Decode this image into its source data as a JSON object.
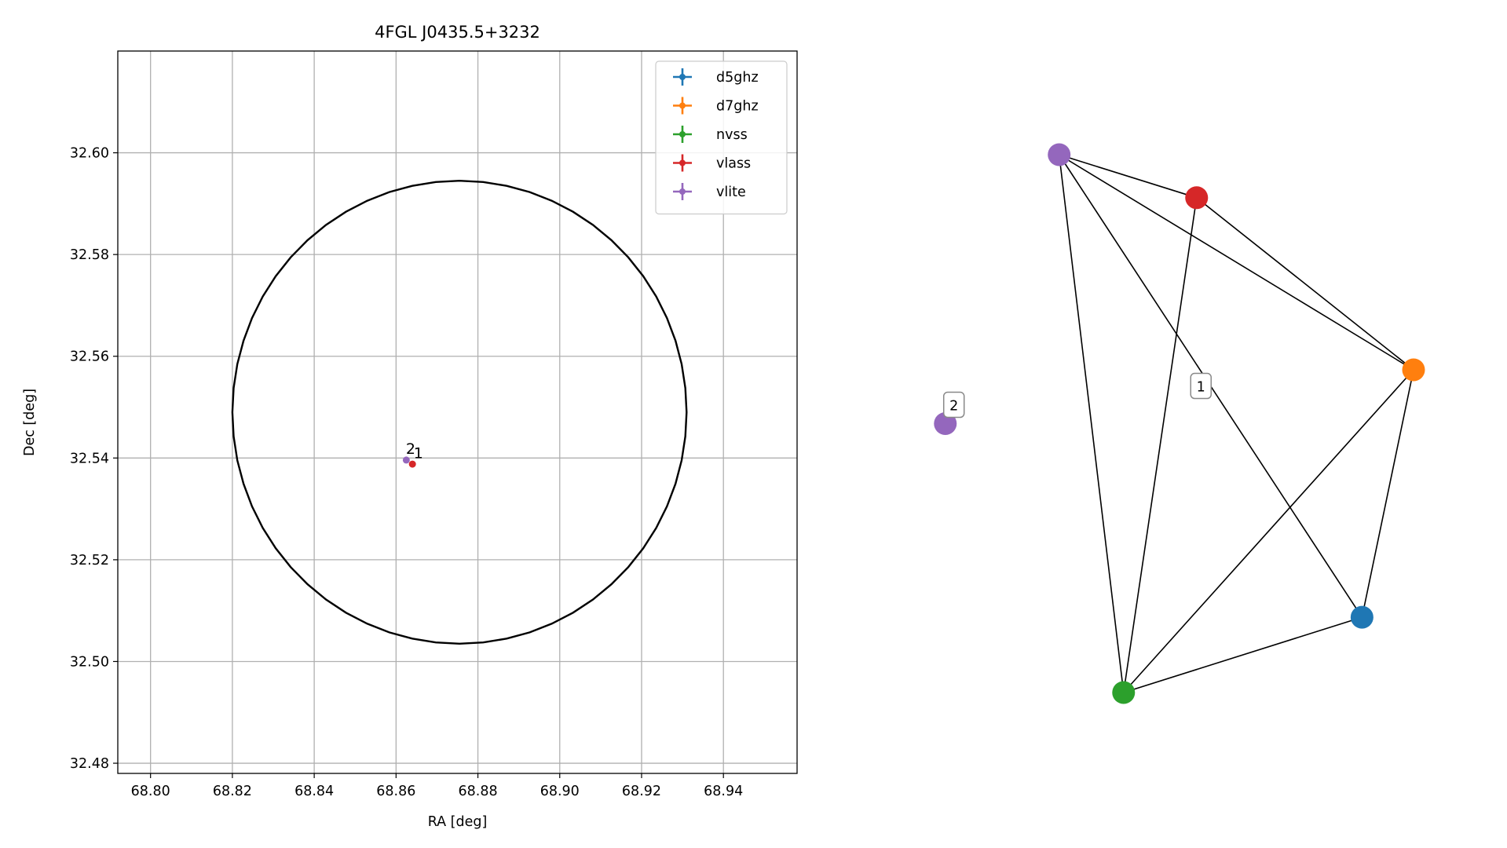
{
  "chart_data": [
    {
      "type": "scatter",
      "title": "4FGL J0435.5+3232",
      "xlabel": "RA [deg]",
      "ylabel": "Dec [deg]",
      "xlim": [
        68.792,
        68.958
      ],
      "ylim": [
        32.478,
        32.62
      ],
      "xticks": [
        "68.80",
        "68.82",
        "68.84",
        "68.86",
        "68.88",
        "68.90",
        "68.92",
        "68.94"
      ],
      "xtick_values": [
        68.8,
        68.82,
        68.84,
        68.86,
        68.88,
        68.9,
        68.92,
        68.94
      ],
      "yticks": [
        "32.48",
        "32.50",
        "32.52",
        "32.54",
        "32.56",
        "32.58",
        "32.60"
      ],
      "ytick_values": [
        32.48,
        32.5,
        32.52,
        32.54,
        32.56,
        32.58,
        32.6
      ],
      "grid": true,
      "legend_position": "top-right",
      "ellipse": {
        "center": [
          68.8755,
          32.549
        ],
        "radius_ra": 0.0555,
        "radius_dec": 0.0455,
        "color": "#000000"
      },
      "series": [
        {
          "name": "d5ghz",
          "color": "#1f77b4",
          "points": []
        },
        {
          "name": "d7ghz",
          "color": "#ff7f0e",
          "points": []
        },
        {
          "name": "nvss",
          "color": "#2ca02c",
          "points": []
        },
        {
          "name": "vlass",
          "color": "#d62728",
          "points": [
            {
              "x": 68.864,
              "y": 32.5388
            }
          ]
        },
        {
          "name": "vlite",
          "color": "#9467bd",
          "points": [
            {
              "x": 68.8625,
              "y": 32.5396
            }
          ]
        }
      ],
      "annotations": [
        {
          "text": "2",
          "x": 68.8624,
          "y": 32.5408
        },
        {
          "text": "1",
          "x": 68.8643,
          "y": 32.54
        }
      ]
    },
    {
      "type": "network",
      "nodes": [
        {
          "id": "vlite",
          "color": "#9467bd",
          "pos": [
            0.175,
            1.0
          ]
        },
        {
          "id": "vlass",
          "color": "#d62728",
          "pos": [
            0.495,
            0.92
          ]
        },
        {
          "id": "d7ghz",
          "color": "#ff7f0e",
          "pos": [
            1.0,
            0.6
          ]
        },
        {
          "id": "d5ghz",
          "color": "#1f77b4",
          "pos": [
            0.88,
            0.14
          ]
        },
        {
          "id": "nvss",
          "color": "#2ca02c",
          "pos": [
            0.325,
            0.0
          ]
        },
        {
          "id": "vlite-2",
          "color": "#9467bd",
          "pos": [
            -0.09,
            0.5
          ]
        }
      ],
      "edges": [
        [
          "vlite",
          "vlass"
        ],
        [
          "vlite",
          "d7ghz"
        ],
        [
          "vlite",
          "d5ghz"
        ],
        [
          "vlite",
          "nvss"
        ],
        [
          "vlass",
          "d7ghz"
        ],
        [
          "vlass",
          "nvss"
        ],
        [
          "d7ghz",
          "nvss"
        ],
        [
          "d7ghz",
          "d5ghz"
        ],
        [
          "d5ghz",
          "nvss"
        ]
      ],
      "cluster_labels": [
        {
          "text": "1",
          "pos": [
            0.505,
            0.57
          ]
        },
        {
          "text": "2",
          "pos": [
            -0.07,
            0.535
          ]
        }
      ]
    }
  ]
}
